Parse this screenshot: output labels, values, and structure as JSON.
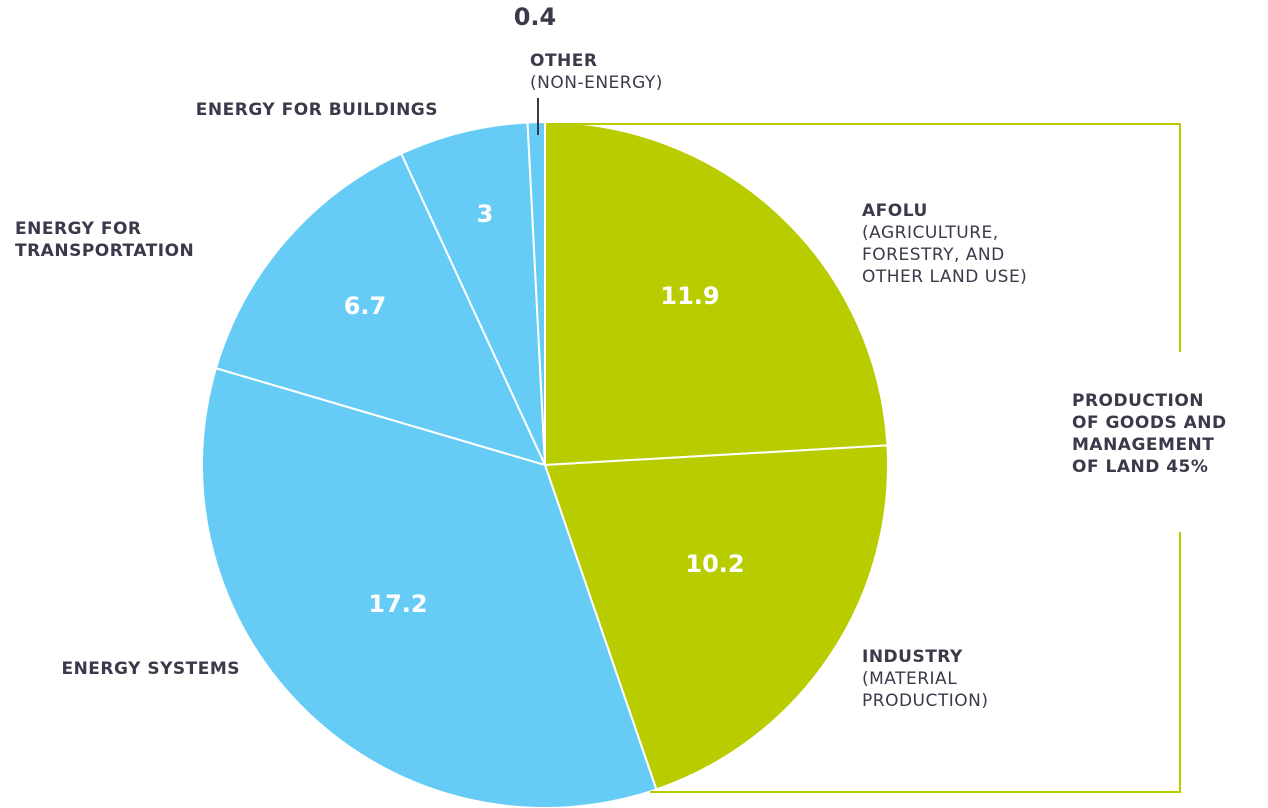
{
  "chart_data": {
    "type": "pie",
    "categories": [
      "AFOLU",
      "INDUSTRY",
      "ENERGY SYSTEMS",
      "ENERGY FOR TRANSPORTATION",
      "ENERGY FOR BUILDINGS",
      "OTHER"
    ],
    "descriptions": [
      [
        "(AGRICULTURE,",
        "FORESTRY, AND",
        "OTHER LAND USE)"
      ],
      [
        "(MATERIAL",
        "PRODUCTION)"
      ],
      null,
      null,
      null,
      [
        "(NON-ENERGY)"
      ]
    ],
    "values": [
      11.9,
      10.2,
      17.2,
      6.7,
      3,
      0.4
    ],
    "colors": [
      "#b8cc00",
      "#b8cc00",
      "#66ccf5",
      "#66ccf5",
      "#66ccf5",
      "#66ccf5"
    ],
    "annotation": [
      "PRODUCTION",
      "OF GOODS AND",
      "MANAGEMENT",
      "OF LAND 45%"
    ]
  }
}
